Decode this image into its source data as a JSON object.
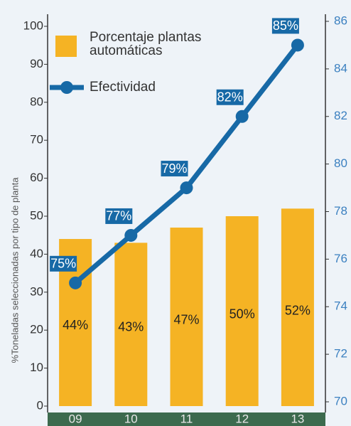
{
  "chart_data": {
    "type": "bar",
    "ylabel": "%Toneladas seleccionadas por tipo de planta",
    "categories": [
      "09",
      "10",
      "11",
      "12",
      "13"
    ],
    "series": [
      {
        "name": "Porcentaje plantas automáticas",
        "type": "bar",
        "color": "#f5b324",
        "values": [
          44,
          43,
          47,
          50,
          52
        ],
        "value_labels": [
          "44%",
          "43%",
          "47%",
          "50%",
          "52%"
        ]
      },
      {
        "name": "Efectividad",
        "type": "line",
        "axis": "y2",
        "color": "#1769a6",
        "values": [
          75,
          77,
          79,
          82,
          85
        ],
        "value_labels": [
          "75%",
          "77%",
          "79%",
          "82%",
          "85%"
        ]
      }
    ],
    "ylim": [
      0,
      100
    ],
    "yticks": [
      0,
      10,
      20,
      30,
      40,
      50,
      60,
      70,
      80,
      90,
      100
    ],
    "y2lim": [
      70,
      86
    ],
    "y2ticks": [
      70,
      72,
      74,
      76,
      78,
      80,
      82,
      84,
      86
    ],
    "grid": false
  }
}
